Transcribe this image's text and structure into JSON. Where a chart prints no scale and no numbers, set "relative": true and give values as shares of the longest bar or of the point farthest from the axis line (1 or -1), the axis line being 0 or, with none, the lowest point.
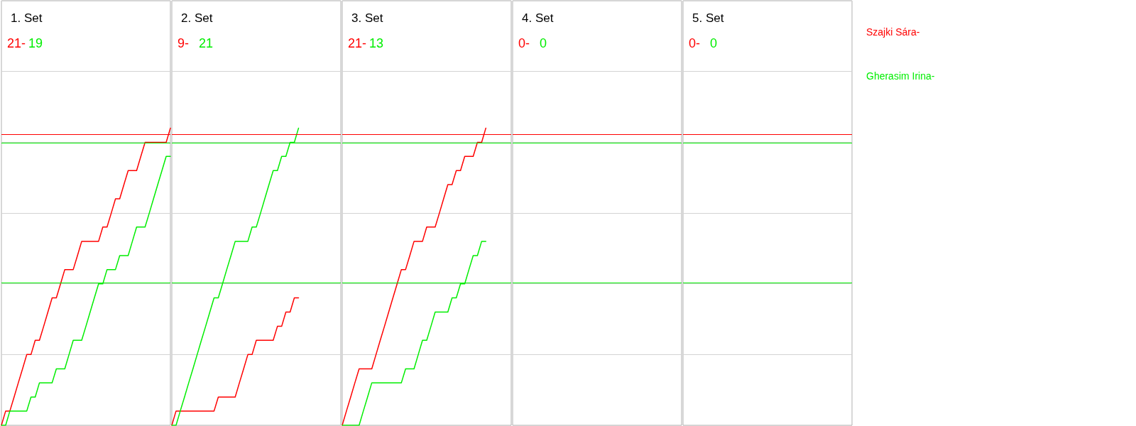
{
  "chart_data": [
    {
      "type": "line",
      "title": "1. Set",
      "annotations": [
        "21-",
        "19"
      ],
      "relative": true,
      "grid": "y",
      "tick_labels": false,
      "categories": [
        null,
        null,
        null,
        null,
        null,
        null,
        null,
        null,
        null,
        null,
        null,
        null,
        null,
        null,
        null,
        null,
        null,
        null,
        null,
        null,
        null,
        null,
        null,
        null,
        null,
        null,
        null,
        null,
        null,
        null,
        null,
        null,
        null,
        null,
        null,
        null,
        null,
        null,
        null,
        null,
        null
      ],
      "series": [
        {
          "name": "Szajki Sára-",
          "color": "#ff0000",
          "values": [
            0,
            0.048,
            0.048,
            0.095,
            0.143,
            0.19,
            0.238,
            0.238,
            0.286,
            0.286,
            0.333,
            0.381,
            0.429,
            0.429,
            0.476,
            0.524,
            0.524,
            0.524,
            0.571,
            0.619,
            0.619,
            0.619,
            0.619,
            0.619,
            0.667,
            0.667,
            0.714,
            0.762,
            0.762,
            0.81,
            0.857,
            0.857,
            0.857,
            0.905,
            0.952,
            0.952,
            0.952,
            0.952,
            0.952,
            0.952,
            1
          ]
        },
        {
          "name": "Gherasim Irina-",
          "color": "#00ee00",
          "values": [
            0,
            0,
            0.048,
            0.048,
            0.048,
            0.048,
            0.048,
            0.095,
            0.095,
            0.143,
            0.143,
            0.143,
            0.143,
            0.19,
            0.19,
            0.19,
            0.238,
            0.286,
            0.286,
            0.286,
            0.333,
            0.381,
            0.429,
            0.476,
            0.476,
            0.524,
            0.524,
            0.524,
            0.571,
            0.571,
            0.571,
            0.619,
            0.667,
            0.667,
            0.667,
            0.714,
            0.762,
            0.81,
            0.857,
            0.905,
            0.905
          ]
        }
      ],
      "ref_lines": [
        {
          "axis": "y",
          "value": 0.976,
          "color": "#ff0000"
        },
        {
          "axis": "y",
          "value": 0.952,
          "color": "#00ee00"
        },
        {
          "axis": "y",
          "value": 0.476,
          "color": "#00ee00"
        }
      ]
    },
    {
      "type": "line",
      "title": "2. Set",
      "annotations": [
        "9-",
        "21"
      ],
      "relative": true,
      "grid": "y",
      "tick_labels": false,
      "categories": [
        null,
        null,
        null,
        null,
        null,
        null,
        null,
        null,
        null,
        null,
        null,
        null,
        null,
        null,
        null,
        null,
        null,
        null,
        null,
        null,
        null,
        null,
        null,
        null,
        null,
        null,
        null,
        null,
        null,
        null,
        null,
        null,
        null,
        null,
        null,
        null,
        null,
        null,
        null,
        null,
        null
      ],
      "series": [
        {
          "color": "#ff0000",
          "values": [
            0,
            0.048,
            0.048,
            0.048,
            0.048,
            0.048,
            0.048,
            0.048,
            0.048,
            0.048,
            0.048,
            0.095,
            0.095,
            0.095,
            0.095,
            0.095,
            0.143,
            0.19,
            0.238,
            0.238,
            0.286,
            0.286,
            0.286,
            0.286,
            0.286,
            0.333,
            0.333,
            0.381,
            0.381,
            0.429,
            0.429,
            null,
            null,
            null,
            null,
            null,
            null,
            null,
            null,
            null,
            null
          ]
        },
        {
          "color": "#00ee00",
          "values": [
            0,
            0,
            0.048,
            0.095,
            0.143,
            0.19,
            0.238,
            0.286,
            0.333,
            0.381,
            0.429,
            0.429,
            0.476,
            0.524,
            0.571,
            0.619,
            0.619,
            0.619,
            0.619,
            0.667,
            0.667,
            0.714,
            0.762,
            0.81,
            0.857,
            0.857,
            0.905,
            0.905,
            0.952,
            0.952,
            1,
            null,
            null,
            null,
            null,
            null,
            null,
            null,
            null,
            null,
            null
          ]
        }
      ],
      "ref_lines": [
        {
          "axis": "y",
          "value": 0.976,
          "color": "#ff0000"
        },
        {
          "axis": "y",
          "value": 0.952,
          "color": "#00ee00"
        },
        {
          "axis": "y",
          "value": 0.476,
          "color": "#00ee00"
        }
      ]
    },
    {
      "type": "line",
      "title": "3. Set",
      "annotations": [
        "21-",
        "13"
      ],
      "relative": true,
      "grid": "y",
      "tick_labels": false,
      "categories": [
        null,
        null,
        null,
        null,
        null,
        null,
        null,
        null,
        null,
        null,
        null,
        null,
        null,
        null,
        null,
        null,
        null,
        null,
        null,
        null,
        null,
        null,
        null,
        null,
        null,
        null,
        null,
        null,
        null,
        null,
        null,
        null,
        null,
        null,
        null,
        null,
        null,
        null,
        null,
        null,
        null
      ],
      "series": [
        {
          "color": "#ff0000",
          "values": [
            0,
            0.048,
            0.095,
            0.143,
            0.19,
            0.19,
            0.19,
            0.19,
            0.238,
            0.286,
            0.333,
            0.381,
            0.429,
            0.476,
            0.524,
            0.524,
            0.571,
            0.619,
            0.619,
            0.619,
            0.667,
            0.667,
            0.667,
            0.714,
            0.762,
            0.81,
            0.81,
            0.857,
            0.857,
            0.905,
            0.905,
            0.905,
            0.952,
            0.952,
            1,
            null,
            null,
            null,
            null,
            null,
            null
          ]
        },
        {
          "color": "#00ee00",
          "values": [
            0,
            0,
            0,
            0,
            0,
            0.048,
            0.095,
            0.143,
            0.143,
            0.143,
            0.143,
            0.143,
            0.143,
            0.143,
            0.143,
            0.19,
            0.19,
            0.19,
            0.238,
            0.286,
            0.286,
            0.333,
            0.381,
            0.381,
            0.381,
            0.381,
            0.429,
            0.429,
            0.476,
            0.476,
            0.524,
            0.571,
            0.571,
            0.619,
            0.619,
            null,
            null,
            null,
            null,
            null,
            null
          ]
        }
      ],
      "ref_lines": [
        {
          "axis": "y",
          "value": 0.976,
          "color": "#ff0000"
        },
        {
          "axis": "y",
          "value": 0.952,
          "color": "#00ee00"
        },
        {
          "axis": "y",
          "value": 0.476,
          "color": "#00ee00"
        }
      ]
    },
    {
      "type": "other",
      "title": "4. Set",
      "annotations": [
        "0-",
        "0"
      ]
    },
    {
      "type": "other",
      "title": "5. Set",
      "annotations": [
        "0-",
        "0"
      ]
    }
  ]
}
